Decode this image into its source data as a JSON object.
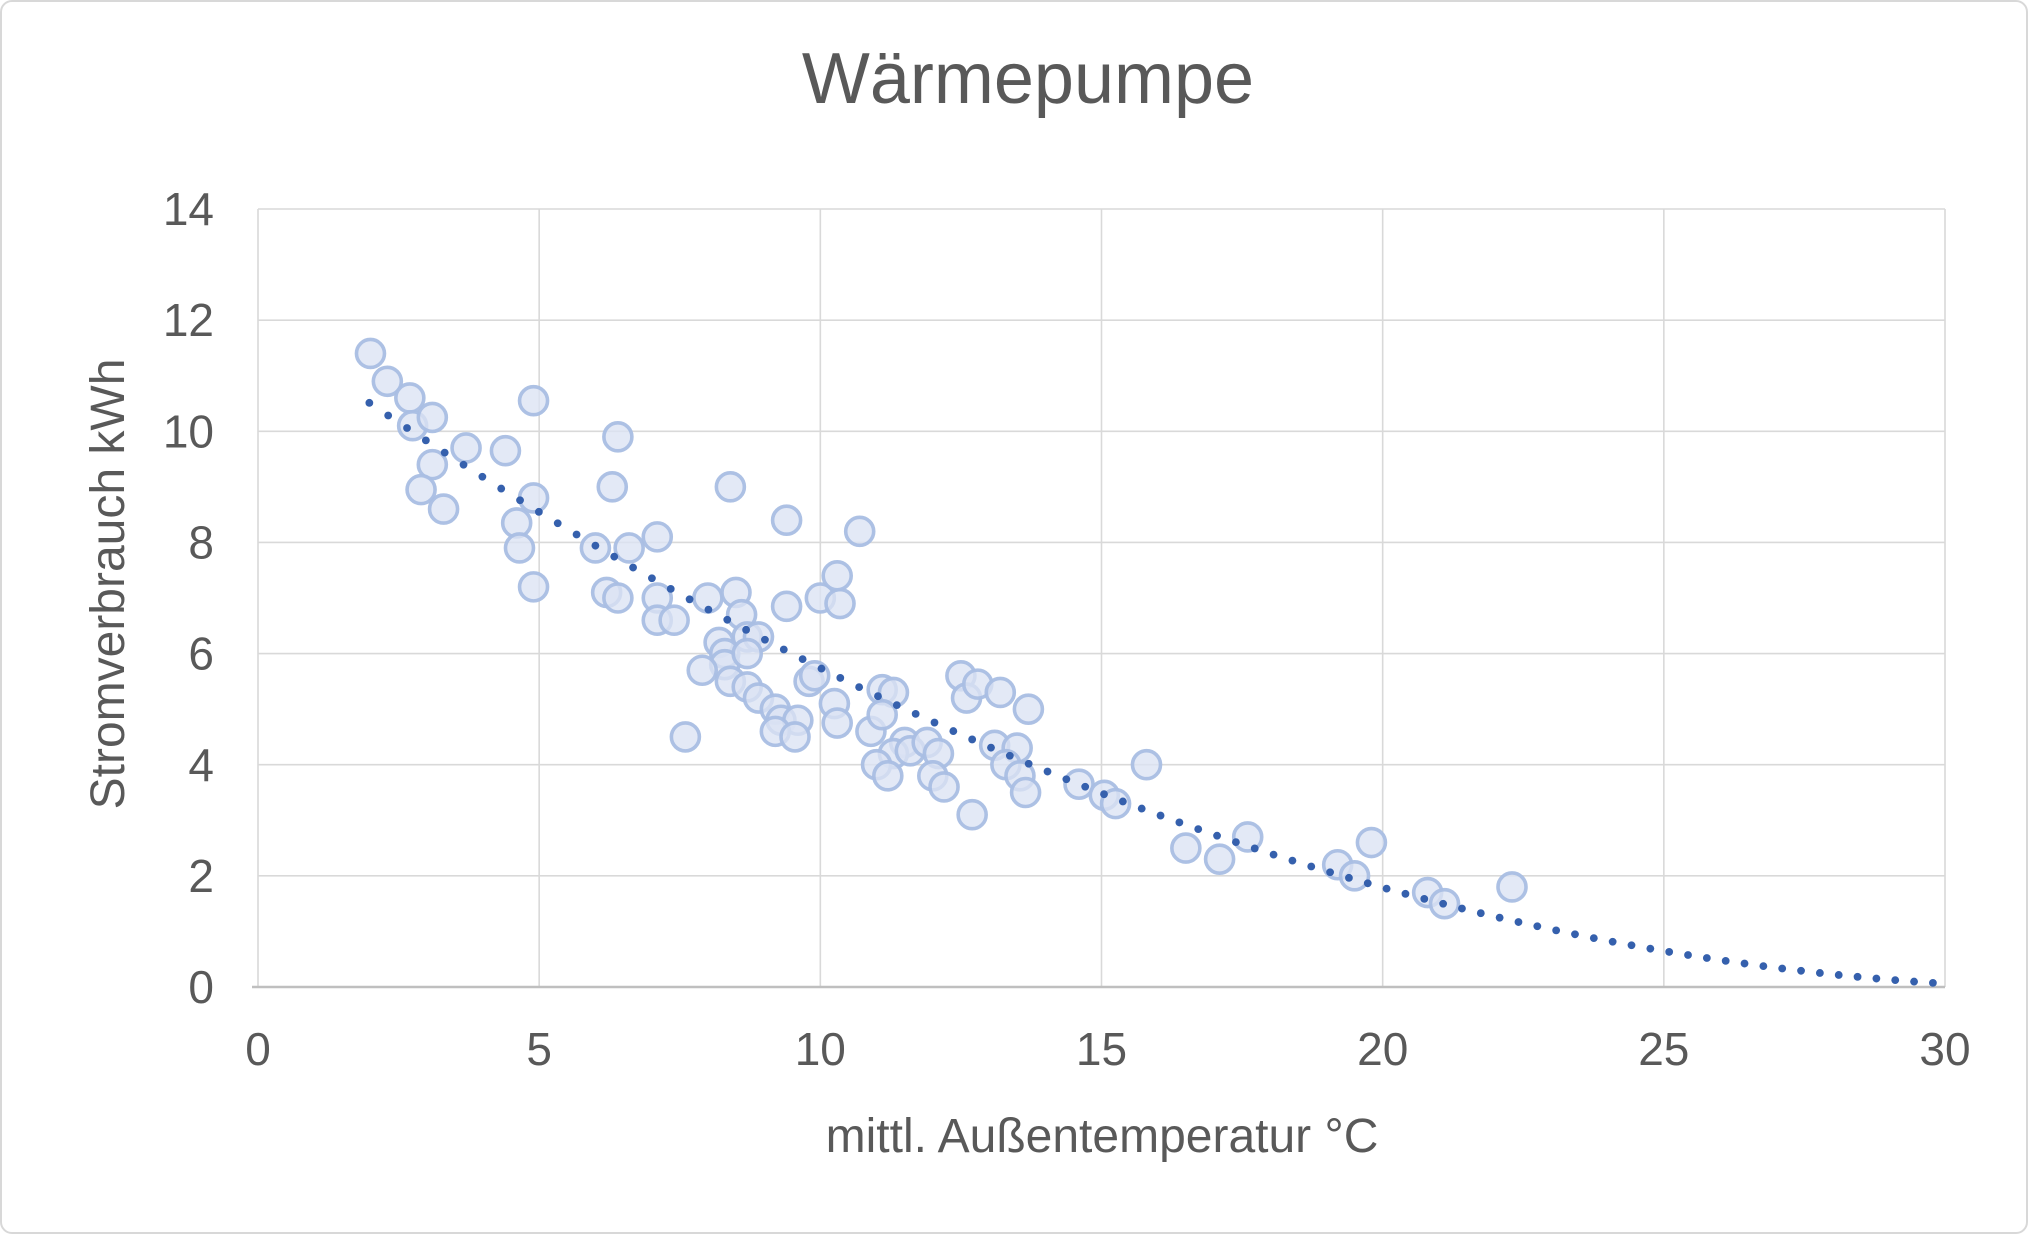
{
  "chart_data": {
    "type": "scatter",
    "title": "Wärmepumpe",
    "xlabel": "mittl. Außentemperatur °C",
    "ylabel": "Stromverbrauch kWh",
    "xlim": [
      0,
      30
    ],
    "ylim": [
      0,
      14
    ],
    "xticks": [
      0,
      5,
      10,
      15,
      20,
      25,
      30
    ],
    "yticks": [
      0,
      2,
      4,
      6,
      8,
      10,
      12,
      14
    ],
    "grid": true,
    "legend": "none",
    "series": [
      {
        "name": "Stromverbrauch",
        "marker": "circle",
        "points": [
          [
            2.0,
            11.4
          ],
          [
            2.3,
            10.9
          ],
          [
            2.7,
            10.6
          ],
          [
            2.75,
            10.1
          ],
          [
            3.1,
            10.25
          ],
          [
            3.1,
            9.4
          ],
          [
            2.9,
            8.95
          ],
          [
            3.3,
            8.6
          ],
          [
            3.7,
            9.7
          ],
          [
            4.4,
            9.65
          ],
          [
            4.9,
            10.55
          ],
          [
            4.6,
            8.35
          ],
          [
            4.65,
            7.9
          ],
          [
            4.9,
            8.8
          ],
          [
            4.9,
            7.2
          ],
          [
            6.4,
            9.9
          ],
          [
            6.3,
            9.0
          ],
          [
            6.0,
            7.9
          ],
          [
            6.6,
            7.9
          ],
          [
            7.1,
            8.1
          ],
          [
            6.2,
            7.1
          ],
          [
            6.4,
            7.0
          ],
          [
            8.4,
            9.0
          ],
          [
            9.4,
            8.4
          ],
          [
            10.7,
            8.2
          ],
          [
            7.1,
            7.0
          ],
          [
            7.1,
            6.6
          ],
          [
            7.4,
            6.6
          ],
          [
            8.0,
            7.0
          ],
          [
            8.5,
            7.1
          ],
          [
            8.6,
            6.7
          ],
          [
            8.7,
            6.3
          ],
          [
            8.9,
            6.3
          ],
          [
            8.2,
            6.2
          ],
          [
            8.3,
            6.0
          ],
          [
            8.3,
            5.8
          ],
          [
            8.7,
            6.0
          ],
          [
            7.9,
            5.7
          ],
          [
            8.4,
            5.5
          ],
          [
            8.7,
            5.4
          ],
          [
            8.9,
            5.2
          ],
          [
            9.2,
            5.0
          ],
          [
            9.3,
            4.8
          ],
          [
            9.6,
            4.8
          ],
          [
            9.2,
            4.6
          ],
          [
            9.55,
            4.5
          ],
          [
            7.6,
            4.5
          ],
          [
            9.8,
            5.5
          ],
          [
            9.9,
            5.6
          ],
          [
            10.25,
            5.1
          ],
          [
            10.3,
            4.75
          ],
          [
            10.0,
            7.0
          ],
          [
            10.35,
            6.9
          ],
          [
            10.3,
            7.4
          ],
          [
            9.4,
            6.85
          ],
          [
            10.9,
            4.6
          ],
          [
            11.5,
            4.4
          ],
          [
            11.1,
            5.35
          ],
          [
            11.3,
            5.3
          ],
          [
            11.1,
            4.9
          ],
          [
            11.3,
            4.2
          ],
          [
            11.6,
            4.25
          ],
          [
            11.0,
            4.0
          ],
          [
            11.2,
            3.8
          ],
          [
            11.9,
            4.4
          ],
          [
            12.1,
            4.2
          ],
          [
            12.0,
            3.8
          ],
          [
            12.2,
            3.6
          ],
          [
            12.7,
            3.1
          ],
          [
            12.5,
            5.6
          ],
          [
            12.6,
            5.2
          ],
          [
            12.8,
            5.45
          ],
          [
            13.2,
            5.3
          ],
          [
            13.7,
            5.0
          ],
          [
            13.1,
            4.35
          ],
          [
            13.5,
            4.3
          ],
          [
            13.3,
            4.0
          ],
          [
            13.55,
            3.8
          ],
          [
            13.65,
            3.5
          ],
          [
            14.6,
            3.65
          ],
          [
            15.05,
            3.45
          ],
          [
            15.25,
            3.3
          ],
          [
            15.8,
            4.0
          ],
          [
            16.5,
            2.5
          ],
          [
            17.1,
            2.3
          ],
          [
            17.6,
            2.7
          ],
          [
            19.2,
            2.2
          ],
          [
            19.5,
            2.0
          ],
          [
            19.8,
            2.6
          ],
          [
            20.8,
            1.7
          ],
          [
            21.1,
            1.5
          ],
          [
            22.3,
            1.8
          ]
        ]
      }
    ],
    "trendline": {
      "style": "dotted",
      "type": "polynomial-2",
      "equation": "y = 0.0111x² − 0.728x + 11.91",
      "a": 0.0111,
      "b": -0.728,
      "c": 11.91,
      "t_start": 1.98,
      "t_end": 29.92,
      "dot_spacing": 0.335
    },
    "colors": {
      "marker_fill": "#dbe3f3",
      "marker_stroke": "#a9bee3",
      "trend": "#3560ad",
      "grid": "#d9d9d9",
      "axis": "#bfbfbf",
      "text": "#595959",
      "background": "#ffffff"
    }
  }
}
